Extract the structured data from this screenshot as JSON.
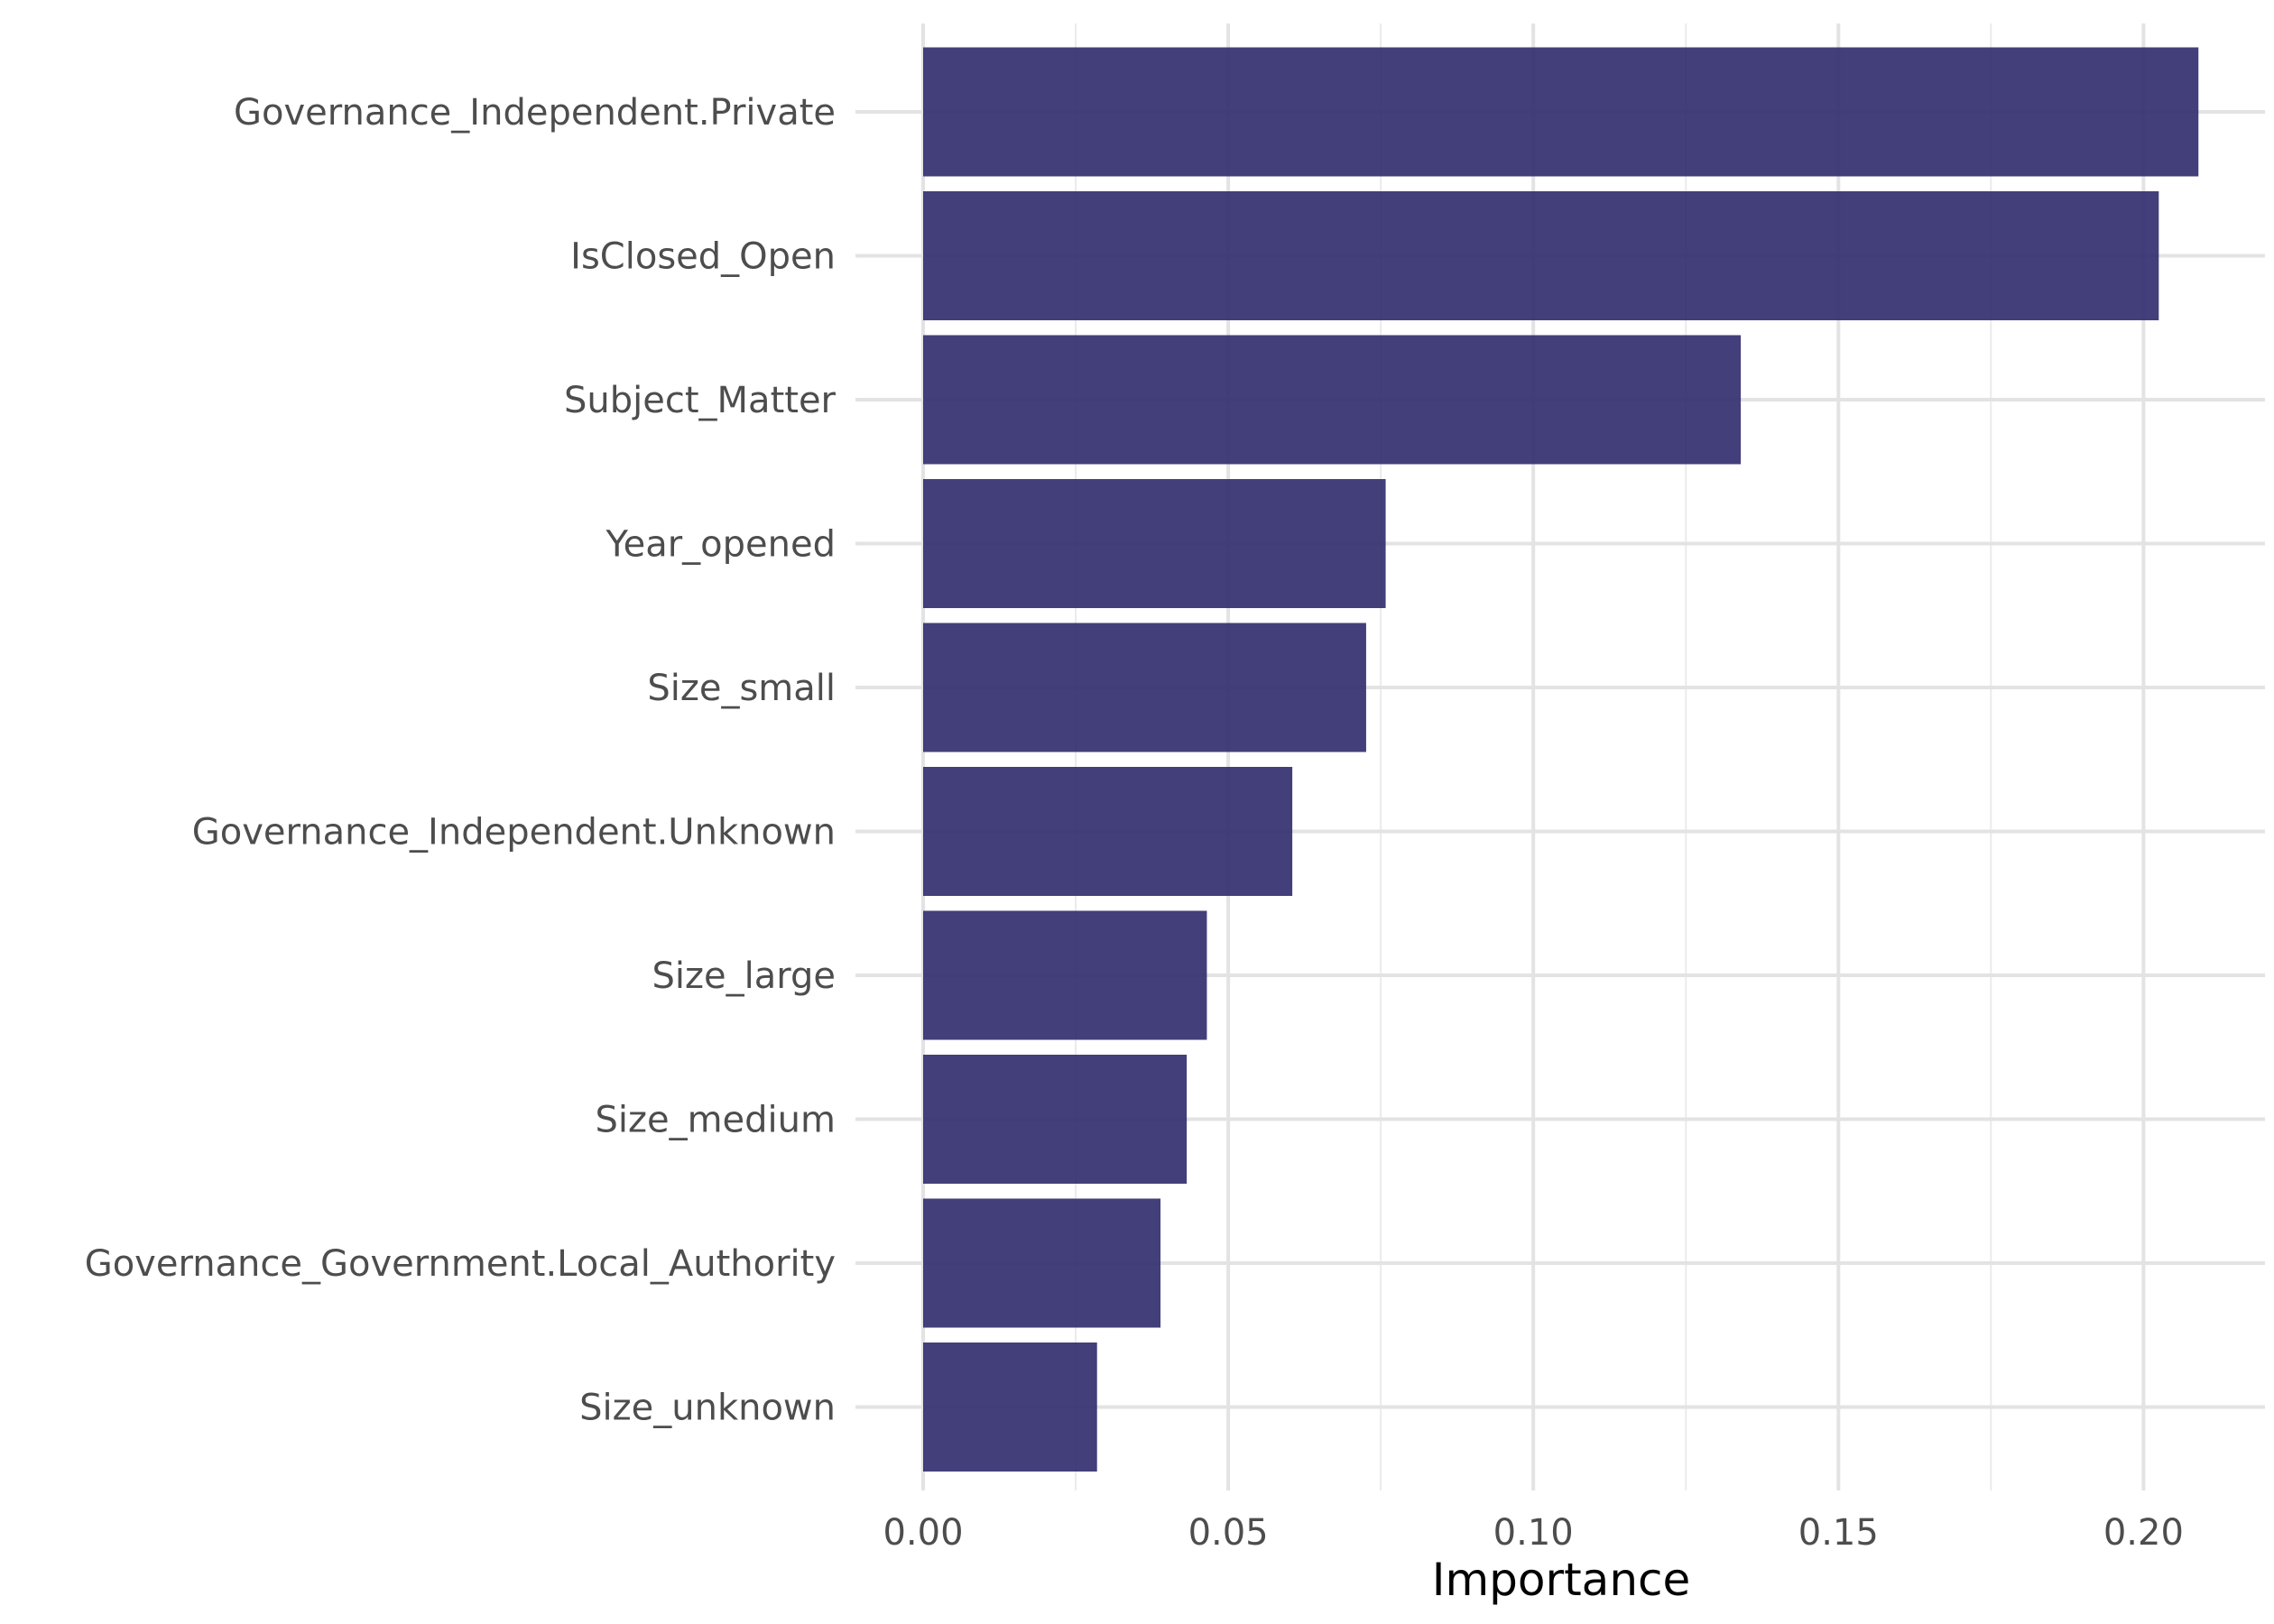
{
  "chart_data": {
    "type": "bar",
    "orientation": "horizontal",
    "title": "",
    "xlabel": "Importance",
    "ylabel": "",
    "xlim": [
      0,
      0.22
    ],
    "xticks": [
      0.0,
      0.05,
      0.1,
      0.15,
      0.2
    ],
    "xtick_labels": [
      "0.00",
      "0.05",
      "0.10",
      "0.15",
      "0.20"
    ],
    "grid": true,
    "bar_color": "#2e2a6d",
    "categories": [
      "Governance_Independent.Private",
      "IsClosed_Open",
      "Subject_Matter",
      "Year_opened",
      "Size_small",
      "Governance_Independent.Unknown",
      "Size_large",
      "Size_medium",
      "Governance_Government.Local_Authority",
      "Size_unknown"
    ],
    "values": [
      0.209,
      0.2025,
      0.134,
      0.0758,
      0.0726,
      0.0605,
      0.0465,
      0.0432,
      0.0389,
      0.0285
    ]
  }
}
